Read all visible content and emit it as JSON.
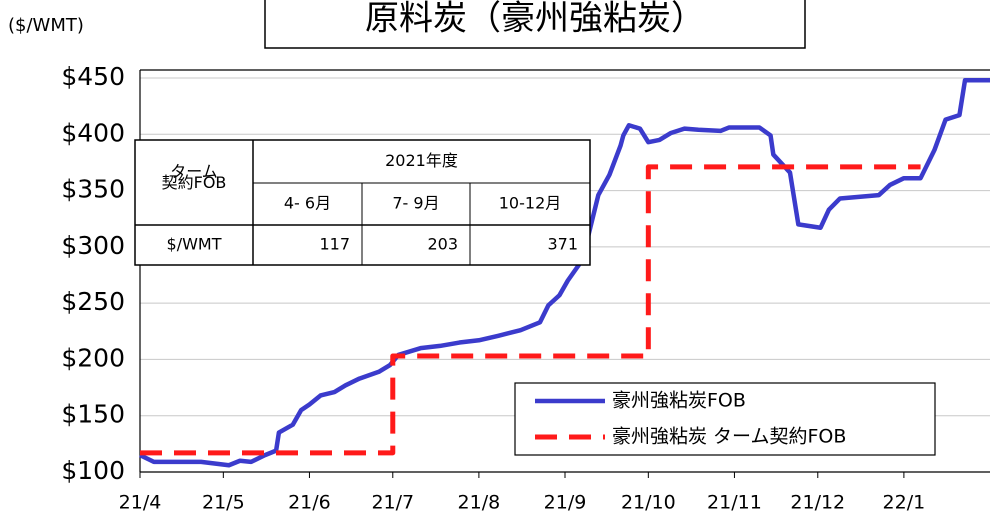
{
  "chart_data": {
    "type": "line",
    "title": "原料炭（豪州強粘炭）",
    "y_unit": "($/WMT)",
    "xlim": [
      0,
      306
    ],
    "xticks": [
      {
        "value": 0,
        "label": "21/4"
      },
      {
        "value": 30,
        "label": "21/5"
      },
      {
        "value": 61,
        "label": "21/6"
      },
      {
        "value": 91,
        "label": "21/7"
      },
      {
        "value": 122,
        "label": "21/8"
      },
      {
        "value": 153,
        "label": "21/9"
      },
      {
        "value": 183,
        "label": "21/10"
      },
      {
        "value": 214,
        "label": "21/11"
      },
      {
        "value": 244,
        "label": "21/12"
      },
      {
        "value": 275,
        "label": "22/1"
      }
    ],
    "ylim": [
      100,
      450
    ],
    "yticks": [
      {
        "value": 100,
        "label": "$100"
      },
      {
        "value": 150,
        "label": "$150"
      },
      {
        "value": 200,
        "label": "$200"
      },
      {
        "value": 250,
        "label": "$250"
      },
      {
        "value": 300,
        "label": "$300"
      },
      {
        "value": 350,
        "label": "$350"
      },
      {
        "value": 400,
        "label": "$400"
      },
      {
        "value": 450,
        "label": "$450"
      }
    ],
    "grid": true,
    "legend": "lower right",
    "series": [
      {
        "name": "豪州強粘炭FOB",
        "color": "#3b3bcc",
        "dash": false,
        "x": [
          0,
          5,
          22,
          32,
          36,
          40,
          45,
          49,
          50,
          55,
          58,
          61,
          65,
          70,
          74,
          79,
          86,
          90,
          93,
          101,
          108,
          115,
          122,
          129,
          137,
          144,
          147,
          151,
          154,
          158,
          161,
          165,
          169,
          173,
          174,
          176,
          180,
          183,
          187,
          191,
          196,
          201,
          209,
          212,
          223,
          227,
          228,
          234,
          237,
          245,
          248,
          252,
          266,
          270,
          275,
          281,
          286,
          290,
          295,
          297,
          306
        ],
        "values": [
          115,
          109,
          109,
          106,
          110,
          109,
          115,
          119,
          135,
          142,
          155,
          160,
          168,
          171,
          177,
          183,
          189,
          195,
          204,
          210,
          212,
          215,
          217,
          221,
          226,
          233,
          248,
          257,
          270,
          284,
          306,
          346,
          364,
          390,
          399,
          408,
          405,
          393,
          395,
          401,
          405,
          404,
          403,
          406,
          406,
          399,
          382,
          366,
          320,
          317,
          333,
          343,
          346,
          355,
          361,
          361,
          386,
          413,
          417,
          448,
          448
        ]
      },
      {
        "name": "豪州強粘炭 ターム契約FOB",
        "color": "#ff1a1a",
        "dash": true,
        "x": [
          0,
          91,
          91,
          183,
          183,
          281
        ],
        "values": [
          117,
          117,
          203,
          203,
          371,
          371
        ]
      }
    ],
    "table": {
      "corner": "ターム契約FOB",
      "group": "2021年度",
      "columns": [
        "4- 6月",
        "7- 9月",
        "10-12月"
      ],
      "row_label": "$/WMT",
      "values": [
        117,
        203,
        371
      ]
    }
  }
}
